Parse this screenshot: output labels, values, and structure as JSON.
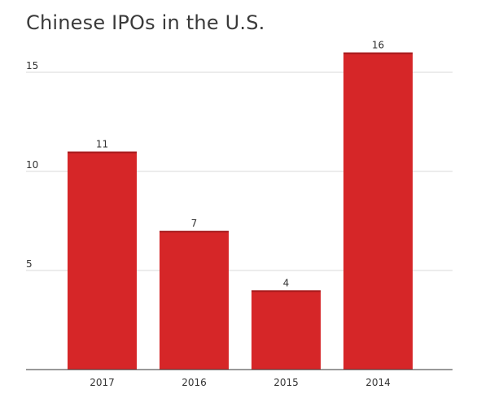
{
  "chart_data": {
    "type": "bar",
    "title": "Chinese IPOs in the U.S.",
    "categories": [
      "2017",
      "2016",
      "2015",
      "2014"
    ],
    "values": [
      11,
      7,
      4,
      16
    ],
    "ylim": [
      0,
      16
    ],
    "yticks": [
      "5",
      "10",
      "15"
    ],
    "ytick_values": [
      5,
      10,
      15
    ],
    "grid": true,
    "bar_color": "#d62628",
    "bar_top_color": "#a51d1f"
  }
}
